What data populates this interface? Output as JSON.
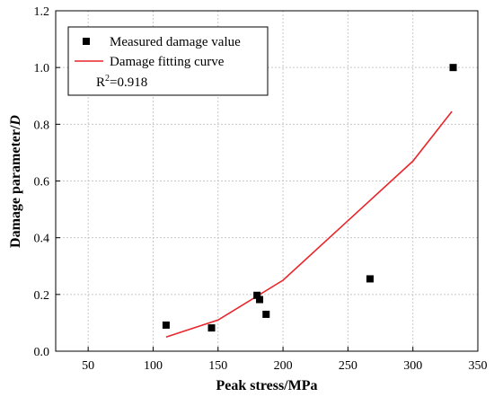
{
  "chart_data": {
    "type": "scatter",
    "xlabel": "Peak stress/MPa",
    "ylabel_main": "Damage parameter/",
    "ylabel_italic": "D",
    "xlim": [
      25,
      350
    ],
    "ylim": [
      0,
      1.2
    ],
    "xticks": [
      "50",
      "100",
      "150",
      "200",
      "250",
      "300",
      "350"
    ],
    "yticks": [
      "0.0",
      "0.2",
      "0.4",
      "0.6",
      "0.8",
      "1.0",
      "1.2"
    ],
    "grid": true,
    "legend_position": "top-left",
    "series": [
      {
        "name": "Measured damage value",
        "kind": "scatter",
        "marker": "square",
        "color": "#000000",
        "x": [
          110,
          145,
          180,
          182,
          187,
          267,
          331
        ],
        "y": [
          0.092,
          0.082,
          0.197,
          0.182,
          0.13,
          0.255,
          1.0
        ]
      },
      {
        "name": "Damage fitting curve",
        "kind": "line",
        "color": "#e8262b",
        "x": [
          110,
          150,
          200,
          250,
          300,
          330
        ],
        "y": [
          0.05,
          0.11,
          0.25,
          0.46,
          0.67,
          0.845
        ]
      }
    ],
    "annotation": {
      "base": "R",
      "sup": "2",
      "value": "=0.918"
    }
  }
}
